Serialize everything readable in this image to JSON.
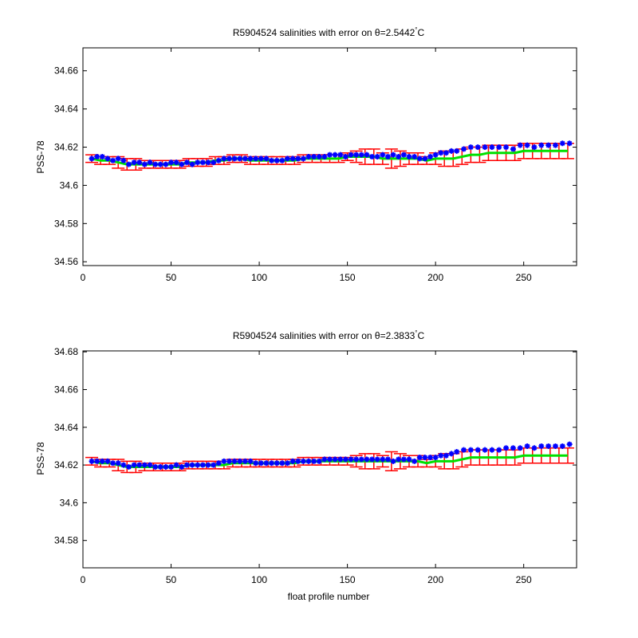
{
  "colors": {
    "error_bar": "#ff0000",
    "calibrated": "#00e000",
    "float": "#0000ff",
    "axis": "#000000"
  },
  "chart_data": [
    {
      "type": "scatter",
      "title": "R5904524 salinities with error on θ=2.5442°C",
      "title_prefix": "R5904524 salinities with error on θ=2.5442",
      "title_sup": "°",
      "title_suffix": "C",
      "xlabel": "",
      "ylabel": "PSS-78",
      "xlim": [
        0,
        280
      ],
      "ylim": [
        34.558,
        34.672
      ],
      "xticks": [
        0,
        50,
        100,
        150,
        200,
        250
      ],
      "yticks": [
        34.56,
        34.58,
        34.6,
        34.62,
        34.64,
        34.66
      ],
      "ytick_labels": [
        "34.56",
        "34.58",
        "34.6",
        "34.62",
        "34.64",
        "34.66"
      ],
      "series": [
        {
          "role": "calibrated",
          "x": [
            5,
            10,
            15,
            20,
            25,
            30,
            35,
            40,
            45,
            50,
            55,
            60,
            65,
            70,
            75,
            80,
            85,
            90,
            95,
            100,
            105,
            110,
            115,
            120,
            125,
            130,
            135,
            140,
            145,
            150,
            155,
            160,
            165,
            170,
            175,
            180,
            185,
            190,
            195,
            200,
            205,
            210,
            215,
            220,
            225,
            230,
            235,
            240,
            245,
            250,
            255,
            260,
            265,
            270,
            275
          ],
          "y": [
            34.614,
            34.613,
            34.613,
            34.612,
            34.611,
            34.611,
            34.611,
            34.611,
            34.611,
            34.611,
            34.611,
            34.612,
            34.612,
            34.612,
            34.613,
            34.613,
            34.614,
            34.614,
            34.613,
            34.613,
            34.613,
            34.613,
            34.613,
            34.613,
            34.614,
            34.614,
            34.614,
            34.614,
            34.614,
            34.615,
            34.615,
            34.615,
            34.615,
            34.614,
            34.614,
            34.614,
            34.614,
            34.614,
            34.613,
            34.614,
            34.614,
            34.614,
            34.615,
            34.616,
            34.616,
            34.617,
            34.617,
            34.617,
            34.617,
            34.618,
            34.618,
            34.618,
            34.618,
            34.618,
            34.618
          ],
          "err": [
            0.002,
            0.002,
            0.002,
            0.003,
            0.003,
            0.003,
            0.002,
            0.002,
            0.002,
            0.002,
            0.002,
            0.002,
            0.002,
            0.002,
            0.002,
            0.002,
            0.002,
            0.002,
            0.002,
            0.002,
            0.002,
            0.002,
            0.002,
            0.002,
            0.002,
            0.002,
            0.002,
            0.002,
            0.002,
            0.002,
            0.003,
            0.004,
            0.004,
            0.003,
            0.005,
            0.004,
            0.003,
            0.003,
            0.002,
            0.003,
            0.004,
            0.004,
            0.004,
            0.004,
            0.004,
            0.004,
            0.004,
            0.004,
            0.004,
            0.004,
            0.004,
            0.004,
            0.004,
            0.004,
            0.004
          ]
        },
        {
          "role": "float",
          "x": [
            5,
            8,
            11,
            14,
            17,
            20,
            23,
            26,
            29,
            32,
            35,
            38,
            41,
            44,
            47,
            50,
            53,
            56,
            59,
            62,
            65,
            68,
            71,
            74,
            77,
            80,
            83,
            86,
            89,
            92,
            95,
            98,
            101,
            104,
            107,
            110,
            113,
            116,
            119,
            122,
            125,
            128,
            131,
            134,
            137,
            140,
            143,
            146,
            149,
            152,
            155,
            158,
            161,
            164,
            167,
            170,
            173,
            176,
            179,
            182,
            185,
            188,
            191,
            194,
            197,
            200,
            203,
            206,
            209,
            212,
            216,
            220,
            224,
            228,
            232,
            236,
            240,
            244,
            248,
            252,
            256,
            260,
            264,
            268,
            272,
            276
          ],
          "y": [
            34.614,
            34.615,
            34.615,
            34.614,
            34.613,
            34.614,
            34.613,
            34.611,
            34.612,
            34.612,
            34.611,
            34.612,
            34.611,
            34.611,
            34.611,
            34.612,
            34.612,
            34.611,
            34.612,
            34.611,
            34.612,
            34.612,
            34.612,
            34.612,
            34.613,
            34.614,
            34.614,
            34.614,
            34.614,
            34.614,
            34.614,
            34.614,
            34.614,
            34.614,
            34.613,
            34.613,
            34.613,
            34.614,
            34.614,
            34.614,
            34.614,
            34.615,
            34.615,
            34.615,
            34.615,
            34.616,
            34.616,
            34.616,
            34.615,
            34.616,
            34.616,
            34.616,
            34.616,
            34.615,
            34.615,
            34.616,
            34.615,
            34.616,
            34.615,
            34.616,
            34.615,
            34.615,
            34.614,
            34.614,
            34.615,
            34.616,
            34.617,
            34.617,
            34.618,
            34.618,
            34.619,
            34.62,
            34.62,
            34.62,
            34.62,
            34.62,
            34.62,
            34.619,
            34.621,
            34.621,
            34.62,
            34.621,
            34.621,
            34.621,
            34.622,
            34.622
          ]
        }
      ]
    },
    {
      "type": "scatter",
      "title": "R5904524 salinities with error on θ=2.3833°C",
      "title_prefix": "R5904524 salinities with error on θ=2.3833",
      "title_sup": "°",
      "title_suffix": "C",
      "xlabel": "float profile number",
      "ylabel": "PSS-78",
      "xlim": [
        0,
        280
      ],
      "ylim": [
        34.5655,
        34.6805
      ],
      "xticks": [
        0,
        50,
        100,
        150,
        200,
        250
      ],
      "yticks": [
        34.58,
        34.6,
        34.62,
        34.64,
        34.66,
        34.68
      ],
      "ytick_labels": [
        "34.58",
        "34.6",
        "34.62",
        "34.64",
        "34.66",
        "34.68"
      ],
      "series": [
        {
          "role": "calibrated",
          "x": [
            5,
            10,
            15,
            20,
            25,
            30,
            35,
            40,
            45,
            50,
            55,
            60,
            65,
            70,
            75,
            80,
            85,
            90,
            95,
            100,
            105,
            110,
            115,
            120,
            125,
            130,
            135,
            140,
            145,
            150,
            155,
            160,
            165,
            170,
            175,
            180,
            185,
            190,
            195,
            200,
            205,
            210,
            215,
            220,
            225,
            230,
            235,
            240,
            245,
            250,
            255,
            260,
            265,
            270,
            275
          ],
          "y": [
            34.622,
            34.621,
            34.621,
            34.62,
            34.619,
            34.619,
            34.619,
            34.619,
            34.619,
            34.619,
            34.619,
            34.62,
            34.62,
            34.62,
            34.62,
            34.62,
            34.621,
            34.621,
            34.621,
            34.621,
            34.621,
            34.621,
            34.621,
            34.621,
            34.622,
            34.622,
            34.622,
            34.622,
            34.622,
            34.622,
            34.622,
            34.622,
            34.622,
            34.622,
            34.622,
            34.622,
            34.622,
            34.622,
            34.621,
            34.622,
            34.622,
            34.622,
            34.623,
            34.624,
            34.624,
            34.624,
            34.624,
            34.624,
            34.624,
            34.625,
            34.625,
            34.625,
            34.625,
            34.625,
            34.625
          ],
          "err": [
            0.002,
            0.002,
            0.002,
            0.003,
            0.003,
            0.003,
            0.002,
            0.002,
            0.002,
            0.002,
            0.002,
            0.002,
            0.002,
            0.002,
            0.002,
            0.002,
            0.002,
            0.002,
            0.002,
            0.002,
            0.002,
            0.002,
            0.002,
            0.002,
            0.002,
            0.002,
            0.002,
            0.002,
            0.002,
            0.002,
            0.003,
            0.004,
            0.004,
            0.003,
            0.005,
            0.004,
            0.003,
            0.003,
            0.002,
            0.003,
            0.004,
            0.004,
            0.004,
            0.004,
            0.004,
            0.004,
            0.004,
            0.004,
            0.004,
            0.004,
            0.004,
            0.004,
            0.004,
            0.004,
            0.004
          ]
        },
        {
          "role": "float",
          "x": [
            5,
            8,
            11,
            14,
            17,
            20,
            23,
            26,
            29,
            32,
            35,
            38,
            41,
            44,
            47,
            50,
            53,
            56,
            59,
            62,
            65,
            68,
            71,
            74,
            77,
            80,
            83,
            86,
            89,
            92,
            95,
            98,
            101,
            104,
            107,
            110,
            113,
            116,
            119,
            122,
            125,
            128,
            131,
            134,
            137,
            140,
            143,
            146,
            149,
            152,
            155,
            158,
            161,
            164,
            167,
            170,
            173,
            176,
            179,
            182,
            185,
            188,
            191,
            194,
            197,
            200,
            203,
            206,
            209,
            212,
            216,
            220,
            224,
            228,
            232,
            236,
            240,
            244,
            248,
            252,
            256,
            260,
            264,
            268,
            272,
            276
          ],
          "y": [
            34.622,
            34.622,
            34.622,
            34.622,
            34.621,
            34.621,
            34.62,
            34.619,
            34.62,
            34.62,
            34.62,
            34.62,
            34.619,
            34.619,
            34.619,
            34.619,
            34.62,
            34.619,
            34.62,
            34.62,
            34.62,
            34.62,
            34.62,
            34.62,
            34.621,
            34.622,
            34.622,
            34.622,
            34.622,
            34.622,
            34.622,
            34.621,
            34.621,
            34.621,
            34.621,
            34.621,
            34.621,
            34.621,
            34.622,
            34.622,
            34.622,
            34.622,
            34.622,
            34.622,
            34.623,
            34.623,
            34.623,
            34.623,
            34.623,
            34.623,
            34.623,
            34.623,
            34.623,
            34.623,
            34.623,
            34.623,
            34.623,
            34.622,
            34.623,
            34.623,
            34.623,
            34.622,
            34.624,
            34.624,
            34.624,
            34.624,
            34.625,
            34.625,
            34.626,
            34.627,
            34.628,
            34.628,
            34.628,
            34.628,
            34.628,
            34.628,
            34.629,
            34.629,
            34.629,
            34.63,
            34.629,
            34.63,
            34.63,
            34.63,
            34.63,
            34.631
          ]
        }
      ]
    }
  ]
}
